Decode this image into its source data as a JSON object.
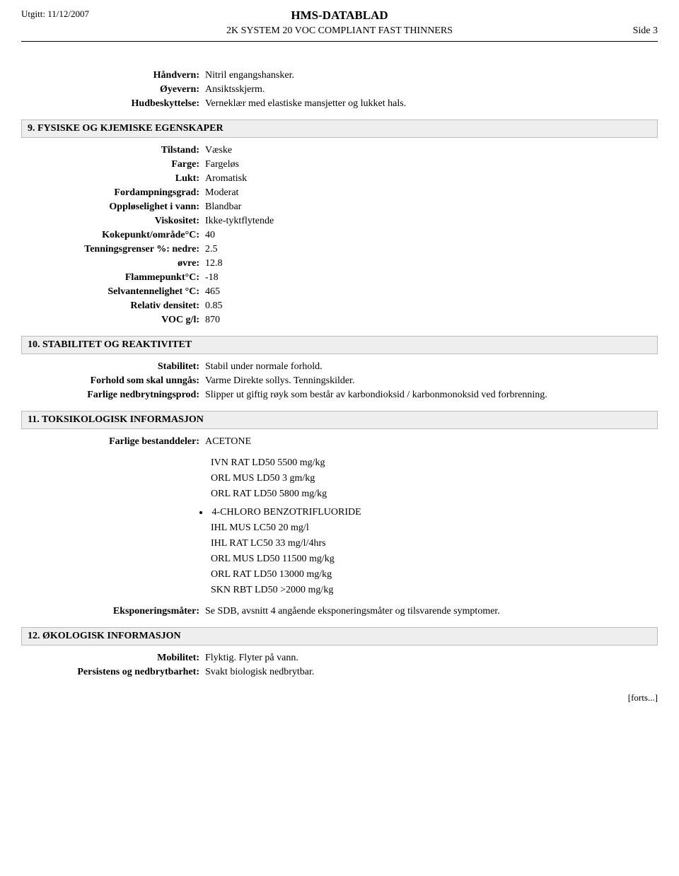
{
  "header": {
    "issued": "Utgitt: 11/12/2007",
    "title": "HMS-DATABLAD",
    "subtitle": "2K SYSTEM 20 VOC COMPLIANT FAST THINNERS",
    "page": "Side 3"
  },
  "block_prot": [
    {
      "label": "Håndvern:",
      "value": "Nitril engangshansker."
    },
    {
      "label": "Øyevern:",
      "value": "Ansiktsskjerm."
    },
    {
      "label": "Hudbeskyttelse:",
      "value": "Verneklær med elastiske mansjetter og lukket hals."
    }
  ],
  "section9": {
    "title": "9. FYSISKE OG KJEMISKE EGENSKAPER",
    "rows": [
      {
        "label": "Tilstand:",
        "value": "Væske"
      },
      {
        "label": "Farge:",
        "value": "Fargeløs"
      },
      {
        "label": "Lukt:",
        "value": "Aromatisk"
      },
      {
        "label": "Fordampningsgrad:",
        "value": "Moderat"
      },
      {
        "label": "Oppløselighet i vann:",
        "value": "Blandbar"
      },
      {
        "label": "Viskositet:",
        "value": "Ikke-tyktflytende"
      },
      {
        "label": "Kokepunkt/område°C:",
        "value": "40"
      },
      {
        "label": "Tenningsgrenser %: nedre:",
        "value": "2.5"
      },
      {
        "label": "øvre:",
        "value": "12.8"
      },
      {
        "label": "Flammepunkt°C:",
        "value": "-18"
      },
      {
        "label": "Selvantennelighet °C:",
        "value": "465"
      },
      {
        "label": "Relativ densitet:",
        "value": "0.85"
      },
      {
        "label": "VOC g/l:",
        "value": "870"
      }
    ]
  },
  "section10": {
    "title": "10. STABILITET OG REAKTIVITET",
    "rows": [
      {
        "label": "Stabilitet:",
        "value": "Stabil under normale forhold."
      },
      {
        "label": "Forhold som skal unngås:",
        "value": "Varme Direkte sollys. Tenningskilder."
      },
      {
        "label": "Farlige nedbrytningsprod:",
        "value": "Slipper ut giftig røyk som består av karbondioksid / karbonmonoksid ved forbrenning."
      }
    ]
  },
  "section11": {
    "title": "11. TOKSIKOLOGISK INFORMASJON",
    "lead_label": "Farlige bestanddeler:",
    "lead_value": "ACETONE",
    "group1": [
      "IVN RAT LD50 5500 mg/kg",
      "ORL MUS LD50 3 gm/kg",
      "ORL RAT LD50 5800 mg/kg"
    ],
    "bullet_heading": "4-CHLORO BENZOTRIFLUORIDE",
    "group2": [
      "IHL MUS LC50 20 mg/l",
      "IHL RAT LC50 33 mg/l/4hrs",
      "ORL MUS LD50 11500 mg/kg",
      "ORL RAT LD50 13000 mg/kg",
      "SKN RBT LD50 >2000 mg/kg"
    ],
    "tail_label": "Eksponeringsmåter:",
    "tail_value": "Se SDB, avsnitt 4 angående eksponeringsmåter og tilsvarende symptomer."
  },
  "section12": {
    "title": "12. ØKOLOGISK INFORMASJON",
    "rows": [
      {
        "label": "Mobilitet:",
        "value": "Flyktig. Flyter på vann."
      },
      {
        "label": "Persistens og nedbrytbarhet:",
        "value": "Svakt biologisk nedbrytbar."
      }
    ]
  },
  "footer": {
    "cont": "[forts...]"
  }
}
